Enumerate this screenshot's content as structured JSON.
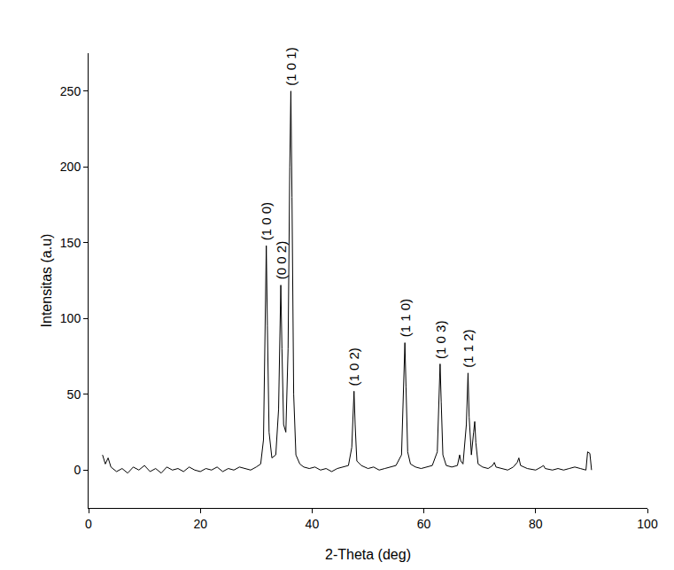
{
  "chart_data": {
    "type": "line",
    "xlabel": "2-Theta (deg)",
    "ylabel": "Intensitas (a.u)",
    "color": "#000000",
    "grid": false,
    "xlim": [
      0,
      100
    ],
    "xticks": [
      0,
      20,
      40,
      60,
      80,
      100
    ],
    "ylim": [
      -25,
      275
    ],
    "yticks": [
      0,
      50,
      100,
      150,
      200,
      250
    ],
    "x": [
      2.5,
      3,
      3.5,
      4,
      5,
      6,
      7,
      8,
      9,
      10,
      11,
      12,
      13,
      14,
      15,
      16,
      17,
      18,
      19,
      20,
      21,
      22,
      23,
      24,
      25,
      26,
      27,
      28,
      29,
      30,
      30.8,
      31.3,
      31.6,
      31.8,
      32.0,
      32.3,
      32.8,
      33.5,
      34.0,
      34.2,
      34.4,
      34.6,
      34.9,
      35.3,
      35.7,
      36.0,
      36.2,
      36.4,
      36.7,
      37.1,
      37.8,
      38.5,
      39.5,
      40.5,
      41.5,
      42.5,
      43.5,
      44.5,
      45.5,
      46.5,
      47.1,
      47.4,
      47.5,
      47.7,
      48.0,
      48.8,
      50,
      51,
      52,
      53,
      54,
      55,
      56,
      56.3,
      56.6,
      56.8,
      57.1,
      57.6,
      58.5,
      59.5,
      60.5,
      61.5,
      62.4,
      62.7,
      62.9,
      63.1,
      63.4,
      64,
      65,
      66,
      66.2,
      66.4,
      66.6,
      67,
      67.6,
      67.9,
      68.1,
      68.5,
      68.9,
      69.1,
      69.3,
      69.7,
      70.5,
      71.5,
      72.3,
      72.6,
      72.9,
      74,
      75,
      76,
      76.7,
      77,
      77.3,
      78.5,
      80,
      81,
      81.4,
      81.7,
      83,
      84,
      85,
      86,
      87,
      88,
      89,
      89.3,
      89.7,
      90
    ],
    "values": [
      10,
      4,
      8,
      2,
      -1,
      1,
      -2,
      2,
      0,
      3,
      -1,
      1,
      -2,
      2,
      0,
      1,
      -1,
      2,
      0,
      -1,
      1,
      0,
      2,
      -1,
      1,
      0,
      2,
      1,
      0,
      2,
      4,
      20,
      90,
      148,
      95,
      25,
      8,
      10,
      40,
      90,
      122,
      80,
      30,
      25,
      80,
      200,
      250,
      180,
      50,
      10,
      4,
      2,
      1,
      2,
      0,
      1,
      -1,
      1,
      2,
      3,
      15,
      45,
      52,
      30,
      6,
      3,
      1,
      2,
      0,
      1,
      2,
      3,
      10,
      50,
      84,
      55,
      12,
      4,
      2,
      1,
      2,
      3,
      12,
      50,
      70,
      45,
      10,
      3,
      2,
      3,
      8,
      10,
      6,
      4,
      30,
      64,
      35,
      10,
      25,
      32,
      18,
      4,
      2,
      1,
      3,
      5,
      2,
      1,
      0,
      2,
      5,
      8,
      3,
      1,
      0,
      2,
      3,
      1,
      0,
      1,
      0,
      1,
      2,
      1,
      0,
      12,
      11,
      0
    ],
    "annotations": [
      {
        "text": "(1 0 0)",
        "x": 31.8,
        "y": 148
      },
      {
        "text": "(0 0 2)",
        "x": 34.4,
        "y": 122
      },
      {
        "text": "(1 0 1)",
        "x": 36.2,
        "y": 250
      },
      {
        "text": "(1 0 2)",
        "x": 47.5,
        "y": 52
      },
      {
        "text": "(1 1 0)",
        "x": 56.6,
        "y": 84
      },
      {
        "text": "(1 0 3)",
        "x": 62.9,
        "y": 70
      },
      {
        "text": "(1 1 2)",
        "x": 67.9,
        "y": 64
      }
    ]
  }
}
